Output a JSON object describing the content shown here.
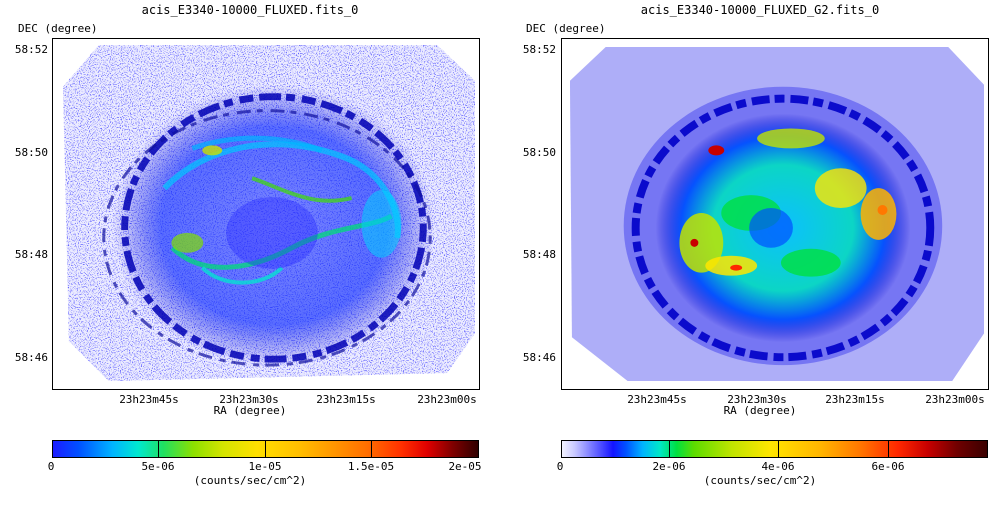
{
  "panels": [
    {
      "title": "acis_E3340-10000_FLUXED.fits_0",
      "y_axis_name": "DEC (degree)",
      "x_axis_name": "RA (degree)",
      "y_ticks": [
        "58:52",
        "58:50",
        "58:48",
        "58:46"
      ],
      "x_ticks": [
        "23h23m45s",
        "23h23m30s",
        "23h23m15s",
        "23h23m00s"
      ],
      "colorbar": {
        "ticks": [
          "0",
          "5e-06",
          "1e-05",
          "1.5e-05",
          "2e-05"
        ],
        "unit": "(counts/sec/cm^2)"
      }
    },
    {
      "title": "acis_E3340-10000_FLUXED_G2.fits_0",
      "y_axis_name": "DEC (degree)",
      "x_axis_name": "RA (degree)",
      "y_ticks": [
        "58:52",
        "58:50",
        "58:48",
        "58:46"
      ],
      "x_ticks": [
        "23h23m45s",
        "23h23m30s",
        "23h23m15s",
        "23h23m00s"
      ],
      "colorbar": {
        "ticks": [
          "0",
          "2e-06",
          "4e-06",
          "6e-06"
        ],
        "unit": "(counts/sec/cm^2)"
      }
    }
  ],
  "colors": {
    "left_background_noise": "#2a2aff",
    "right_background": "#9c9cf4",
    "shell_dark": "#0000c8",
    "shell_green": "#00dc50",
    "hot_yellow": "#ffe000",
    "hot_red": "#e00000"
  }
}
